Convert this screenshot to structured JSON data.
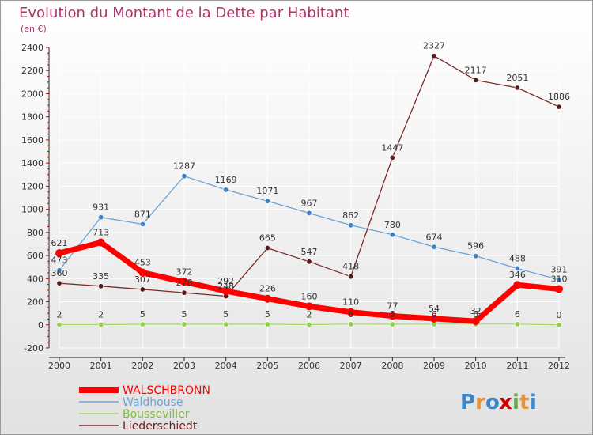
{
  "page": {
    "title": "Evolution du Montant de la Dette par Habitant",
    "unit": "(en €)",
    "logo_text": "Proxiti"
  },
  "colors": {
    "background_top": "#ffffff",
    "background_bottom": "#e2e2e2",
    "title": "#b0336b",
    "grid": "#ffffff",
    "axis": "#222222",
    "label": "#333333"
  },
  "chart_data": {
    "type": "line",
    "title": "Evolution du Montant de la Dette par Habitant",
    "subtitle": "(en €)",
    "xlabel": "",
    "ylabel": "",
    "x": [
      "2000",
      "2001",
      "2002",
      "2003",
      "2004",
      "2005",
      "2006",
      "2007",
      "2008",
      "2009",
      "2010",
      "2011",
      "2012"
    ],
    "ylim": [
      -200,
      2400
    ],
    "yticks": [
      -200,
      0,
      200,
      400,
      600,
      800,
      1000,
      1200,
      1400,
      1600,
      1800,
      2000,
      2200,
      2400
    ],
    "grid": true,
    "legend_position": "bottom-left",
    "series": [
      {
        "name": "WALSCHBRONN",
        "color": "#ff0000",
        "marker_color": "#ff0000",
        "bold": true,
        "values": [
          621,
          713,
          453,
          372,
          292,
          226,
          160,
          110,
          77,
          54,
          32,
          346,
          310
        ]
      },
      {
        "name": "Waldhouse",
        "color": "#6ea3d7",
        "marker_color": "#3a80c7",
        "bold": false,
        "values": [
          473,
          931,
          871,
          1287,
          1169,
          1071,
          967,
          862,
          780,
          674,
          596,
          488,
          391
        ]
      },
      {
        "name": "Bousseviller",
        "color": "#a6d66b",
        "marker_color": "#8fd143",
        "bold": false,
        "values": [
          2,
          2,
          5,
          5,
          5,
          5,
          2,
          6,
          5,
          6,
          6,
          6,
          0
        ]
      },
      {
        "name": "Liederschiedt",
        "color": "#7a2a2a",
        "marker_color": "#5a1a1a",
        "bold": false,
        "values": [
          360,
          335,
          307,
          278,
          248,
          665,
          547,
          418,
          1447,
          2327,
          2117,
          2051,
          1886
        ]
      }
    ]
  }
}
